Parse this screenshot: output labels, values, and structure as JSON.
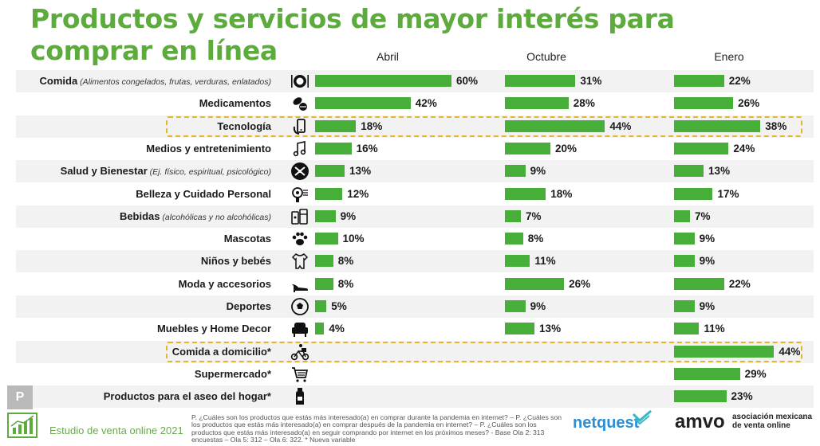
{
  "title": "Productos y servicios de mayor interés para comprar en línea",
  "colors": {
    "bar": "#47ae3a",
    "title": "#5cab3c",
    "highlight": "#e5b52a",
    "stripe": "#f2f2f2"
  },
  "chart_data": {
    "type": "bar",
    "orientation": "horizontal",
    "series": [
      {
        "name": "Abril",
        "values": [
          60,
          42,
          18,
          16,
          13,
          12,
          9,
          10,
          8,
          8,
          5,
          4,
          null,
          null,
          null
        ]
      },
      {
        "name": "Octubre",
        "values": [
          31,
          28,
          44,
          20,
          9,
          18,
          7,
          8,
          11,
          26,
          9,
          13,
          null,
          null,
          null
        ]
      },
      {
        "name": "Enero",
        "values": [
          22,
          26,
          38,
          24,
          13,
          17,
          7,
          9,
          9,
          22,
          9,
          11,
          44,
          29,
          23
        ]
      }
    ],
    "categories": [
      {
        "label": "Comida",
        "note": "(Alimentos congelados, frutas, verduras, enlatados)",
        "icon": "dining-icon"
      },
      {
        "label": "Medicamentos",
        "note": "",
        "icon": "pills-icon"
      },
      {
        "label": "Tecnología",
        "note": "",
        "icon": "phone-icon",
        "highlight": true
      },
      {
        "label": "Medios y entretenimiento",
        "note": "",
        "icon": "music-note-icon"
      },
      {
        "label": "Salud y Bienestar",
        "note": "(Ej. físico, espiritual, psicológico)",
        "icon": "wellness-icon"
      },
      {
        "label": "Belleza y Cuidado Personal",
        "note": "",
        "icon": "hair-dryer-icon"
      },
      {
        "label": "Bebidas",
        "note": "(alcohólicas y no alcohólicas)",
        "icon": "drinks-icon"
      },
      {
        "label": "Mascotas",
        "note": "",
        "icon": "paw-icon"
      },
      {
        "label": "Niños y bebés",
        "note": "",
        "icon": "onesie-icon"
      },
      {
        "label": "Moda y accesorios",
        "note": "",
        "icon": "heel-shoe-icon"
      },
      {
        "label": "Deportes",
        "note": "",
        "icon": "soccer-ball-icon"
      },
      {
        "label": "Muebles y Home Decor",
        "note": "",
        "icon": "armchair-icon"
      },
      {
        "label": "Comida a domicilio*",
        "note": "",
        "icon": "delivery-bike-icon",
        "highlight": true
      },
      {
        "label": "Supermercado*",
        "note": "",
        "icon": "cart-icon"
      },
      {
        "label": "Productos para el aseo del hogar*",
        "note": "",
        "icon": "detergent-bottle-icon"
      }
    ],
    "value_suffix": "%",
    "xlim": [
      0,
      100
    ]
  },
  "footer": {
    "badge": "P",
    "study": "Estudio de venta online 2021",
    "note": "P. ¿Cuáles son los productos que estás más interesado(a) en comprar durante la pandemia en internet? – P. ¿Cuáles son los productos que estás más interesado(a) en comprar después de la pandemia en internet? – P. ¿Cuáles son los productos que estás más interesado(a) en seguir comprando por internet en los próximos meses? - Base Ola 2: 313 encuestas – Ola 5: 312 – Ola 6: 322. * Nueva variable",
    "logo_netquest": "netquest",
    "logo_amvo": "amvo",
    "logo_amvo_sub_1": "asociación mexicana",
    "logo_amvo_sub_2": "de venta online"
  }
}
